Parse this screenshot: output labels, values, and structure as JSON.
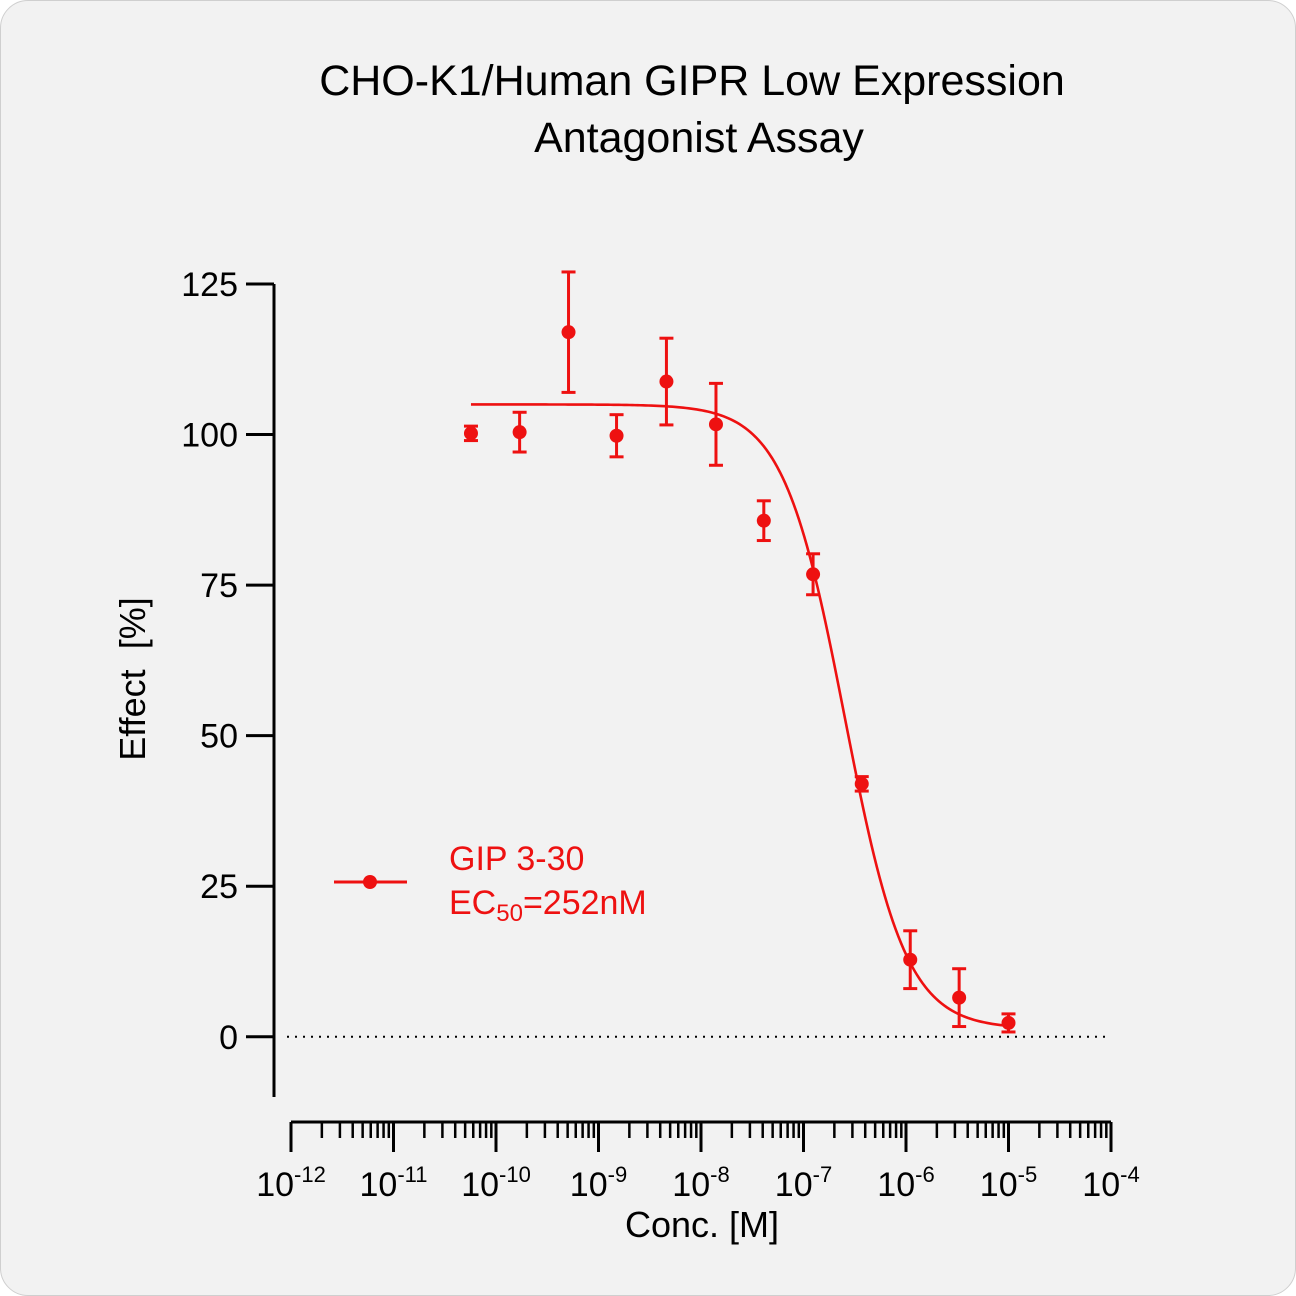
{
  "chart_data": {
    "type": "scatter",
    "title_lines": [
      "CHO-K1/Human GIPR Low Expression",
      "Antagonist Assay"
    ],
    "xlabel": "Conc. [M]",
    "ylabel": "Effect  [%]",
    "x_scale": "log",
    "xlim": [
      1e-12,
      0.0001
    ],
    "x_ticks": [
      {
        "value": 1e-12,
        "base": "10",
        "exp": "-12"
      },
      {
        "value": 1e-11,
        "base": "10",
        "exp": "-11"
      },
      {
        "value": 1e-10,
        "base": "10",
        "exp": "-10"
      },
      {
        "value": 1e-09,
        "base": "10",
        "exp": "-9"
      },
      {
        "value": 1e-08,
        "base": "10",
        "exp": "-8"
      },
      {
        "value": 1e-07,
        "base": "10",
        "exp": "-7"
      },
      {
        "value": 1e-06,
        "base": "10",
        "exp": "-6"
      },
      {
        "value": 1e-05,
        "base": "10",
        "exp": "-5"
      },
      {
        "value": 0.0001,
        "base": "10",
        "exp": "-4"
      }
    ],
    "ylim": [
      -10,
      125
    ],
    "y_ticks": [
      0,
      25,
      50,
      75,
      100,
      125
    ],
    "zero_line": "dotted",
    "grid": false,
    "color": "#ee1111",
    "series": [
      {
        "name": "GIP 3-30",
        "legend_sub": {
          "prefix": "EC",
          "sub": "50",
          "suffix": "=252nM"
        },
        "points": [
          {
            "x": 5.7e-11,
            "y": 100.2,
            "err": 1.2
          },
          {
            "x": 1.7e-10,
            "y": 100.4,
            "err": 3.3
          },
          {
            "x": 5.1e-10,
            "y": 117.0,
            "err": 10.0
          },
          {
            "x": 1.5e-09,
            "y": 99.8,
            "err": 3.5
          },
          {
            "x": 4.6e-09,
            "y": 108.8,
            "err": 7.2
          },
          {
            "x": 1.4e-08,
            "y": 101.7,
            "err": 6.8
          },
          {
            "x": 4.1e-08,
            "y": 85.7,
            "err": 3.3
          },
          {
            "x": 1.24e-07,
            "y": 76.8,
            "err": 3.4
          },
          {
            "x": 3.7e-07,
            "y": 42.0,
            "err": 1.2
          },
          {
            "x": 1.1e-06,
            "y": 12.8,
            "err": 4.8
          },
          {
            "x": 3.3e-06,
            "y": 6.5,
            "err": 4.8
          },
          {
            "x": 1e-05,
            "y": 2.3,
            "err": 1.5
          }
        ],
        "fit": {
          "model": "4PL",
          "top": 105,
          "bottom": 1.3,
          "ec50": 2.52e-07,
          "hill": 1.45,
          "x_from": 5.7e-11,
          "x_to": 1e-05
        }
      }
    ],
    "legend_position": "lower-left"
  }
}
